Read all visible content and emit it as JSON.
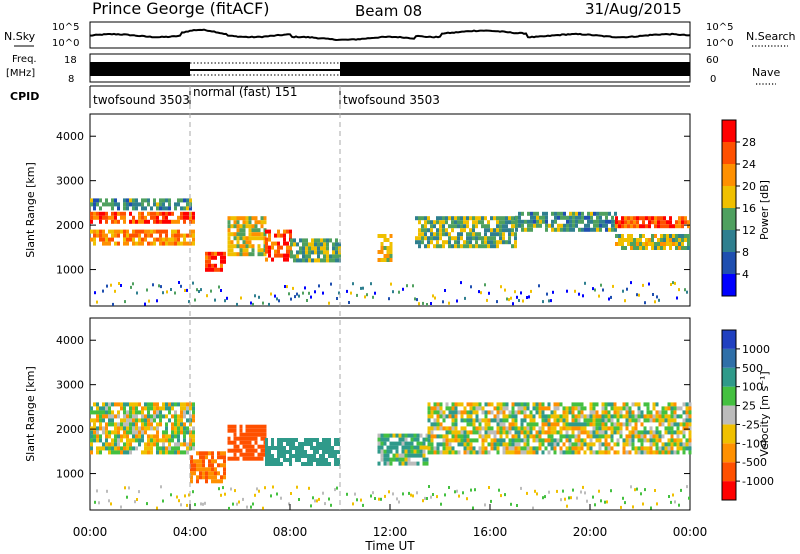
{
  "header": {
    "station": "Prince George (fitACF)",
    "beam": "Beam 08",
    "date": "31/Aug/2015"
  },
  "strips": {
    "nsky_label": "N.Sky",
    "freq_label_1": "Freq.",
    "freq_label_2": "[MHz]",
    "cpid_label": "CPID",
    "nsearch_label": "N.Search",
    "nave_label": "Nave",
    "left_ticks_nsky": [
      "10^5",
      "10^0"
    ],
    "right_ticks_nsky": [
      "10^5",
      "10^0"
    ],
    "left_ticks_freq": [
      "18",
      "8"
    ],
    "right_ticks_nave": [
      "60",
      "0"
    ]
  },
  "cpid_segments": [
    {
      "label": "twofsound 3503",
      "start_h": 0,
      "end_h": 4
    },
    {
      "label": "normal (fast) 151",
      "start_h": 4,
      "end_h": 10
    },
    {
      "label": "twofsound 3503",
      "start_h": 10,
      "end_h": 24
    }
  ],
  "axes": {
    "xlabel": "Time UT",
    "x_ticks": [
      "00:00",
      "04:00",
      "08:00",
      "12:00",
      "16:00",
      "20:00",
      "00:00"
    ],
    "ylabel": "Slant Range [km]",
    "y_ticks": [
      "4000",
      "3000",
      "2000",
      "1000"
    ]
  },
  "colorbars": {
    "power": {
      "label": "Power [dB]",
      "ticks": [
        "28",
        "24",
        "20",
        "16",
        "12",
        "8",
        "4"
      ],
      "colors": [
        "#0000ff",
        "#1f4fb0",
        "#2f7f8f",
        "#4fa05f",
        "#f0c000",
        "#ff9000",
        "#ff5000",
        "#ff0000"
      ]
    },
    "velocity": {
      "label": "Velocity [m s⁻¹]",
      "ticks": [
        "1000",
        "500",
        "100",
        "25",
        "-25",
        "-100",
        "-500",
        "-1000"
      ],
      "colors": [
        "#2040c0",
        "#2f6fa8",
        "#2f9a8a",
        "#44c040",
        "#bcbcbc",
        "#f0c000",
        "#ff9000",
        "#ff5000",
        "#ff0000"
      ]
    }
  },
  "chart_data": {
    "type": "heatmap",
    "x_range_hours": [
      0,
      24
    ],
    "y_range_km": [
      180,
      4500
    ],
    "grid": false,
    "power_panel_bands": [
      {
        "start_h": 0.0,
        "end_h": 4.2,
        "range_km": [
          2100,
          2300
        ],
        "power_db": 26
      },
      {
        "start_h": 0.0,
        "end_h": 4.2,
        "range_km": [
          1600,
          1900
        ],
        "power_db": 22
      },
      {
        "start_h": 0.0,
        "end_h": 4.0,
        "range_km": [
          2400,
          2600
        ],
        "power_db": 12
      },
      {
        "start_h": 4.6,
        "end_h": 5.4,
        "range_km": [
          1000,
          1400
        ],
        "power_db": 28
      },
      {
        "start_h": 5.5,
        "end_h": 7.0,
        "range_km": [
          1300,
          2200
        ],
        "power_db": 18
      },
      {
        "start_h": 7.0,
        "end_h": 8.0,
        "range_km": [
          1200,
          1900
        ],
        "power_db": 26
      },
      {
        "start_h": 8.0,
        "end_h": 10.0,
        "range_km": [
          1200,
          1700
        ],
        "power_db": 14
      },
      {
        "start_h": 11.5,
        "end_h": 12.0,
        "range_km": [
          1200,
          1800
        ],
        "power_db": 20
      },
      {
        "start_h": 13.0,
        "end_h": 17.0,
        "range_km": [
          1500,
          2200
        ],
        "power_db": 14
      },
      {
        "start_h": 17.0,
        "end_h": 21.0,
        "range_km": [
          1900,
          2300
        ],
        "power_db": 12
      },
      {
        "start_h": 21.0,
        "end_h": 24.0,
        "range_km": [
          2000,
          2200
        ],
        "power_db": 26
      },
      {
        "start_h": 21.0,
        "end_h": 24.0,
        "range_km": [
          1500,
          1800
        ],
        "power_db": 16
      }
    ],
    "velocity_panel_bands": [
      {
        "start_h": 0.0,
        "end_h": 4.2,
        "range_km": [
          1500,
          2600
        ],
        "velocity_ms": 0
      },
      {
        "start_h": 4.0,
        "end_h": 5.4,
        "range_km": [
          850,
          1500
        ],
        "velocity_ms": -500
      },
      {
        "start_h": 5.5,
        "end_h": 7.0,
        "range_km": [
          1300,
          2100
        ],
        "velocity_ms": -800
      },
      {
        "start_h": 7.0,
        "end_h": 10.0,
        "range_km": [
          1200,
          1800
        ],
        "velocity_ms": 300
      },
      {
        "start_h": 11.5,
        "end_h": 13.5,
        "range_km": [
          1200,
          1900
        ],
        "velocity_ms": 100
      },
      {
        "start_h": 13.5,
        "end_h": 24.0,
        "range_km": [
          1500,
          2600
        ],
        "velocity_ms": 0
      }
    ]
  }
}
